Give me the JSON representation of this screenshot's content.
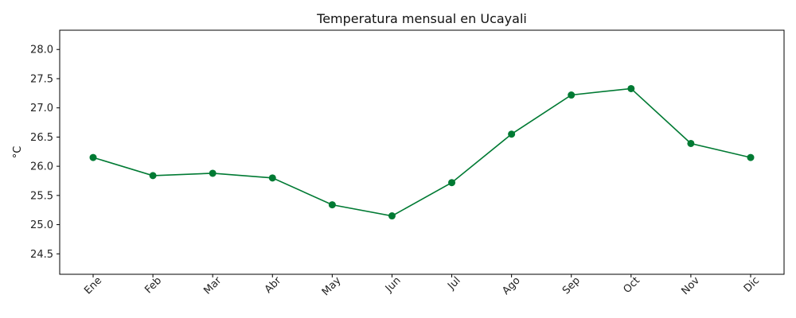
{
  "chart_data": {
    "type": "line",
    "title": "Temperatura mensual en Ucayali",
    "xlabel": "",
    "ylabel": "°C",
    "categories": [
      "Ene",
      "Feb",
      "Mar",
      "Abr",
      "May",
      "Jun",
      "Jul",
      "Ago",
      "Sep",
      "Oct",
      "Nov",
      "Dic"
    ],
    "series": [
      {
        "values": [
          26.15,
          25.84,
          25.88,
          25.8,
          25.34,
          25.15,
          25.72,
          26.55,
          27.22,
          27.33,
          26.39,
          26.15
        ],
        "color": "#007a33",
        "marker": "circle"
      }
    ],
    "ylim": [
      24.15,
      28.33
    ],
    "yticks": [
      24.5,
      25.0,
      25.5,
      26.0,
      26.5,
      27.0,
      27.5,
      28.0
    ],
    "ytick_labels": [
      "24.5",
      "25.0",
      "25.5",
      "26.0",
      "26.5",
      "27.0",
      "27.5",
      "28.0"
    ],
    "grid": false,
    "legend": "none",
    "xtick_rotation": 45
  }
}
